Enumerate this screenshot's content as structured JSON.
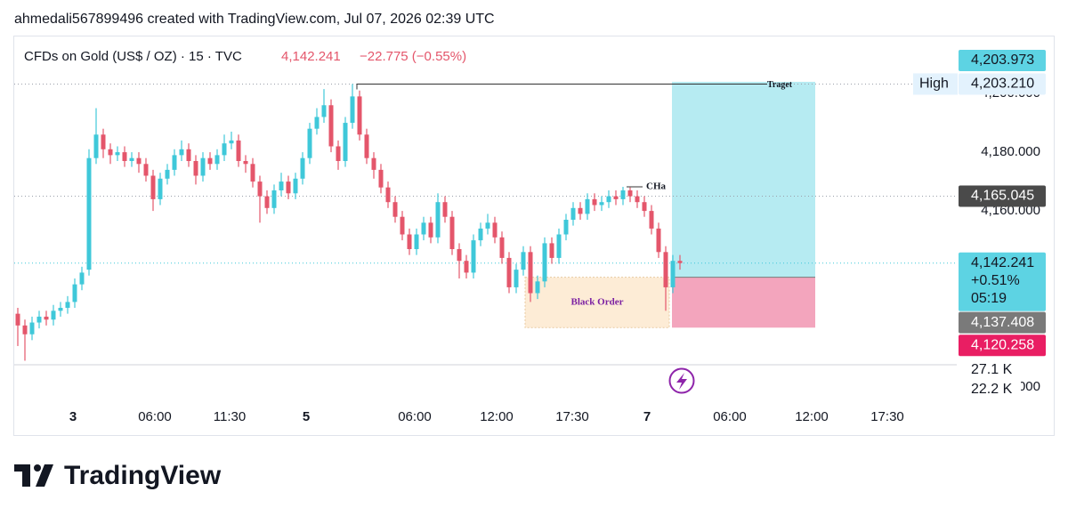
{
  "header": "ahmedali567899496 created with TradingView.com, Jul 07, 2026 02:39 UTC",
  "footer": "TradingView",
  "chart_data": {
    "type": "candlestick",
    "title": "CFDs on Gold (US$ / OZ) · 15 · TVC",
    "change": "−22.775 (−0.55%)",
    "up_color": "#3fc8d9",
    "down_color": "#e4566b",
    "open": [
      4125,
      4121,
      4118,
      4122,
      4124,
      4123,
      4126,
      4127,
      4129,
      4135,
      4140,
      4178,
      4186,
      4181,
      4179,
      4180,
      4177,
      4178,
      4176,
      4172,
      4164,
      4171,
      4174,
      4179,
      4181,
      4177,
      4172,
      4178,
      4176,
      4179,
      4183,
      4184,
      4177,
      4176,
      4170,
      4165,
      4161,
      4167,
      4170,
      4166,
      4171,
      4178,
      4188,
      4192,
      4196,
      4182,
      4177,
      4190,
      4199,
      4186,
      4178,
      4174,
      4168,
      4163,
      4158,
      4152,
      4147,
      4152,
      4156,
      4151,
      4163,
      4158,
      4147,
      4143,
      4139,
      4150,
      4154,
      4156,
      4151,
      4144,
      4134,
      4140,
      4146,
      4132,
      4136,
      4149,
      4144,
      4152,
      4157,
      4161,
      4159,
      4164,
      4162,
      4163,
      4165,
      4164,
      4167,
      4165,
      4163,
      4160,
      4154,
      4146,
      4134,
      4143
    ],
    "high": [
      4127,
      4123,
      4124,
      4126,
      4126,
      4128,
      4129,
      4131,
      4137,
      4141,
      4181,
      4195,
      4188,
      4183,
      4182,
      4182,
      4180,
      4180,
      4178,
      4174,
      4173,
      4176,
      4181,
      4184,
      4183,
      4179,
      4180,
      4180,
      4181,
      4186,
      4187,
      4186,
      4179,
      4178,
      4172,
      4167,
      4169,
      4173,
      4172,
      4173,
      4180,
      4190,
      4195,
      4201.5,
      4198,
      4184,
      4192,
      4203.21,
      4201,
      4188,
      4180,
      4176,
      4170,
      4165,
      4160,
      4154,
      4154,
      4158,
      4158,
      4166,
      4165,
      4160,
      4149,
      4145,
      4152,
      4156,
      4159,
      4158,
      4153,
      4146,
      4142,
      4148,
      4148,
      4138,
      4151,
      4151,
      4154,
      4159,
      4163,
      4163,
      4166,
      4166,
      4165,
      4167,
      4167,
      4168.2,
      4168,
      4167,
      4165,
      4162,
      4156,
      4148,
      4145,
      4145
    ],
    "low": [
      4114,
      4109,
      4116,
      4120,
      4121,
      4121,
      4124,
      4125,
      4127,
      4133,
      4138,
      4176,
      4178,
      4176,
      4177,
      4175,
      4175,
      4173,
      4170,
      4160,
      4162,
      4169,
      4172,
      4177,
      4175,
      4169,
      4170,
      4174,
      4174,
      4177,
      4181,
      4175,
      4173,
      4168,
      4156,
      4159,
      4159,
      4165,
      4164,
      4164,
      4169,
      4176,
      4186,
      4190,
      4180,
      4174,
      4175,
      4188,
      4184,
      4176,
      4171,
      4166,
      4161,
      4156,
      4150,
      4145,
      4145,
      4150,
      4149,
      4149,
      4156,
      4145,
      4137,
      4137,
      4137,
      4148,
      4152,
      4149,
      4142,
      4132,
      4132,
      4138,
      4129,
      4130,
      4134,
      4142,
      4142,
      4150,
      4155,
      4157,
      4157,
      4160,
      4160,
      4161,
      4162,
      4162,
      4163,
      4161,
      4158,
      4152,
      4144,
      4126,
      4132,
      4140
    ],
    "close": [
      4121,
      4118,
      4122,
      4124,
      4123,
      4126,
      4127,
      4129,
      4135,
      4139,
      4178,
      4186,
      4181,
      4179,
      4180,
      4177,
      4178,
      4176,
      4172,
      4164,
      4171,
      4174,
      4179,
      4181,
      4177,
      4172,
      4178,
      4176,
      4179,
      4183,
      4184,
      4177,
      4176,
      4170,
      4165,
      4161,
      4167,
      4170,
      4166,
      4171,
      4178,
      4188,
      4192,
      4196,
      4182,
      4177,
      4190,
      4199,
      4186,
      4178,
      4174,
      4168,
      4163,
      4158,
      4152,
      4147,
      4152,
      4156,
      4151,
      4163,
      4158,
      4147,
      4143,
      4139,
      4150,
      4154,
      4156,
      4151,
      4144,
      4134,
      4140,
      4146,
      4132,
      4136,
      4149,
      4144,
      4152,
      4157,
      4161,
      4159,
      4164,
      4162,
      4163,
      4165,
      4164,
      4167,
      4165,
      4163,
      4160,
      4154,
      4146,
      4134,
      4143,
      4142.241
    ],
    "xlim": [
      -0.5,
      131.875
    ],
    "xticks": [
      {
        "value": 7.75,
        "label": "3"
      },
      {
        "value": 19.25,
        "label": "06:00"
      },
      {
        "value": 29.75,
        "label": "11:30"
      },
      {
        "value": 40.5,
        "label": "5"
      },
      {
        "value": 55.75,
        "label": "06:00"
      },
      {
        "value": 67.25,
        "label": "12:00"
      },
      {
        "value": 77.875,
        "label": "17:30"
      },
      {
        "value": 88.375,
        "label": "7"
      },
      {
        "value": 100,
        "label": "06:00"
      },
      {
        "value": 111.5,
        "label": "12:00"
      },
      {
        "value": 122.125,
        "label": "17:30"
      }
    ],
    "ylim": [
      4095.5,
      4218.2
    ],
    "yticks": [
      {
        "value": 4100,
        "label": "4,100.000"
      },
      {
        "value": 4160,
        "label": "4,160.000"
      },
      {
        "value": 4180,
        "label": "4,180.000"
      },
      {
        "value": 4200,
        "label": "4,200.000"
      }
    ],
    "price_labels": [
      {
        "value": 4203.973,
        "label": "4,203.973",
        "color": "#5dd3e3"
      },
      {
        "name": "High",
        "value": 4203.21,
        "label": "4,203.210",
        "color": "#e3f2fd"
      },
      {
        "value": 4165.045,
        "label": "4,165.045",
        "color": "#4a4a4a"
      },
      {
        "value": 4142.241,
        "label": "4,142.241",
        "change": "+0.51%",
        "timer": "05:19",
        "color": "#5dd3e3"
      },
      {
        "value": 4137.408,
        "label": "4,137.408",
        "color": "#7a7a7a"
      },
      {
        "value": 4120.258,
        "label": "4,120.258",
        "color": "#e91e63"
      }
    ],
    "volume_labels": [
      "27.1 K",
      "22.2 K"
    ],
    "annotations": [
      {
        "text": "Traget"
      },
      {
        "text": "CHa",
        "value": 4168.2
      },
      {
        "text": "Black Order"
      }
    ]
  }
}
